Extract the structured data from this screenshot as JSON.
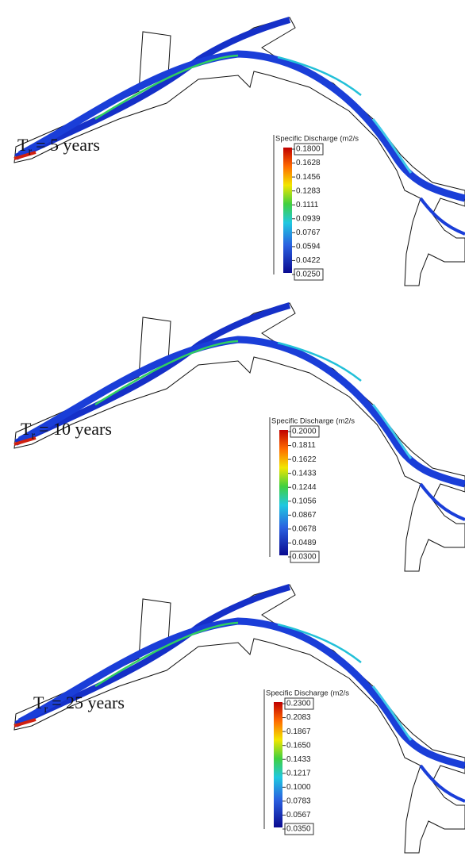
{
  "panels": [
    {
      "label": {
        "symbol": "T",
        "subscript": "r",
        "text": "= 5 years"
      },
      "legend": {
        "title": "Specific Discharge (m2/s",
        "ticks": [
          "0.1800",
          "0.1628",
          "0.1456",
          "0.1283",
          "0.1111",
          "0.0939",
          "0.0767",
          "0.0594",
          "0.0422",
          "0.0250"
        ]
      }
    },
    {
      "label": {
        "symbol": "T",
        "subscript": "r",
        "text": "= 10 years"
      },
      "legend": {
        "title": "Specific Discharge (m2/s",
        "ticks": [
          "0.2000",
          "0.1811",
          "0.1622",
          "0.1433",
          "0.1244",
          "0.1056",
          "0.0867",
          "0.0678",
          "0.0489",
          "0.0300"
        ]
      }
    },
    {
      "label": {
        "symbol": "T",
        "subscript": "r",
        "text": "= 25 years"
      },
      "legend": {
        "title": "Specific Discharge (m2/s",
        "ticks": [
          "0.2300",
          "0.2083",
          "0.1867",
          "0.1650",
          "0.1433",
          "0.1217",
          "0.1000",
          "0.0783",
          "0.0567",
          "0.0350"
        ]
      }
    }
  ]
}
